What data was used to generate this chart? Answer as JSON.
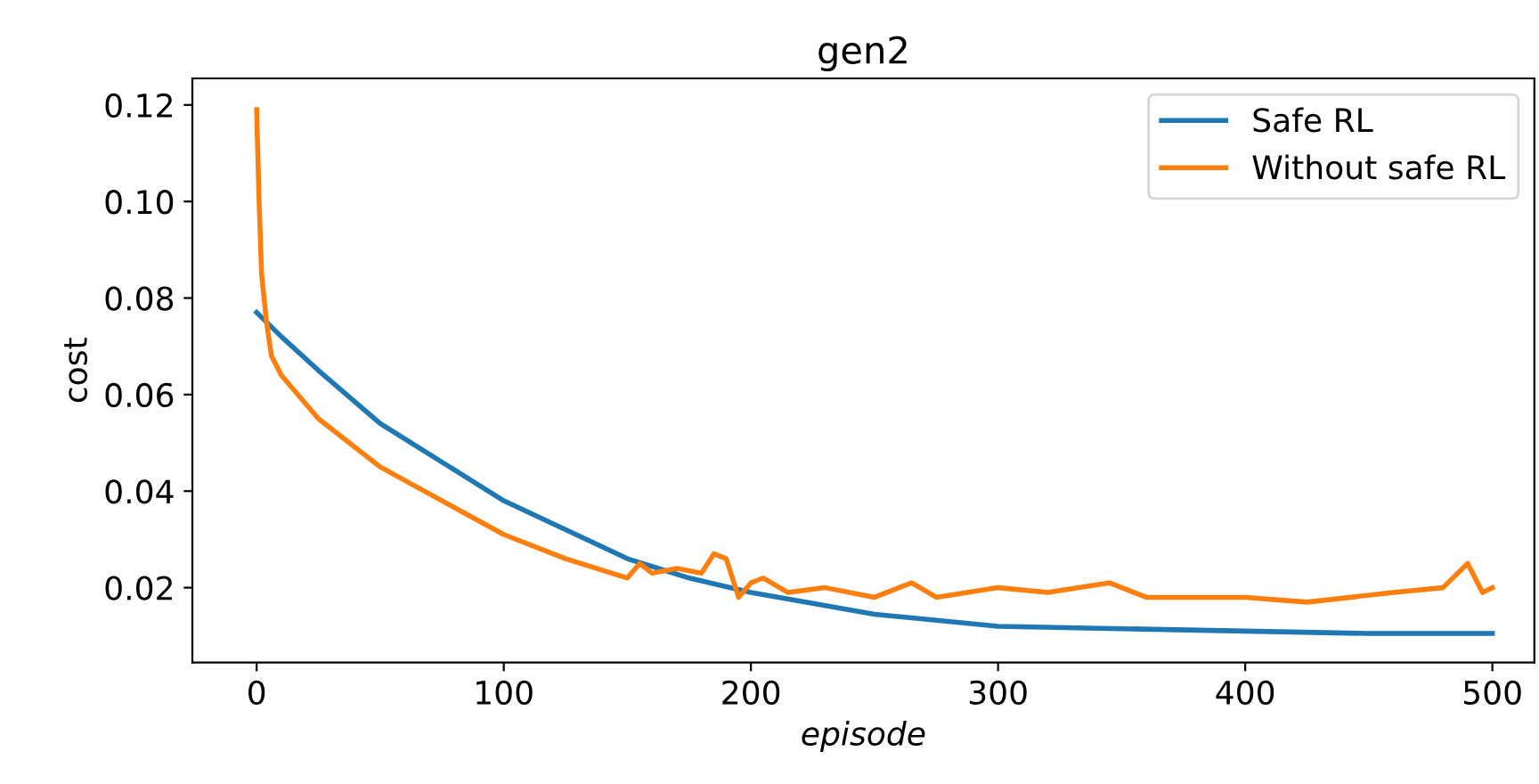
{
  "chart_data": {
    "type": "line",
    "title": "gen2",
    "xlabel": "episode",
    "ylabel": "cost",
    "xlim": [
      -26,
      517
    ],
    "xticks": [
      0,
      100,
      200,
      300,
      400,
      500
    ],
    "ylim": [
      0.0045,
      0.1255
    ],
    "yticks": [
      {
        "value": 0.02,
        "label": "0.02"
      },
      {
        "value": 0.04,
        "label": "0.04"
      },
      {
        "value": 0.06,
        "label": "0.06"
      },
      {
        "value": 0.08,
        "label": "0.08"
      },
      {
        "value": 0.1,
        "label": "0.10"
      },
      {
        "value": 0.12,
        "label": "0.12"
      }
    ],
    "grid": false,
    "legend": "top right",
    "marker": "none",
    "line_style": "solid",
    "series": [
      {
        "name": "Safe RL",
        "color": "#1f77b4",
        "x": [
          0,
          10,
          25,
          50,
          75,
          100,
          125,
          150,
          175,
          200,
          250,
          300,
          350,
          400,
          450,
          500
        ],
        "values": [
          0.077,
          0.072,
          0.065,
          0.054,
          0.046,
          0.038,
          0.032,
          0.026,
          0.022,
          0.019,
          0.0145,
          0.012,
          0.0115,
          0.011,
          0.0105,
          0.0105
        ]
      },
      {
        "name": "Without safe RL",
        "color": "#ff7f0e",
        "x": [
          0,
          1,
          2,
          4,
          6,
          10,
          25,
          50,
          75,
          100,
          125,
          150,
          155,
          160,
          170,
          180,
          185,
          190,
          195,
          200,
          205,
          215,
          230,
          250,
          265,
          275,
          300,
          320,
          345,
          360,
          400,
          425,
          460,
          480,
          490,
          496,
          500
        ],
        "values": [
          0.119,
          0.1,
          0.085,
          0.075,
          0.068,
          0.064,
          0.055,
          0.045,
          0.038,
          0.031,
          0.026,
          0.022,
          0.025,
          0.023,
          0.024,
          0.023,
          0.027,
          0.026,
          0.018,
          0.021,
          0.022,
          0.019,
          0.02,
          0.018,
          0.021,
          0.018,
          0.02,
          0.019,
          0.021,
          0.018,
          0.018,
          0.017,
          0.019,
          0.02,
          0.025,
          0.019,
          0.02
        ]
      }
    ]
  }
}
